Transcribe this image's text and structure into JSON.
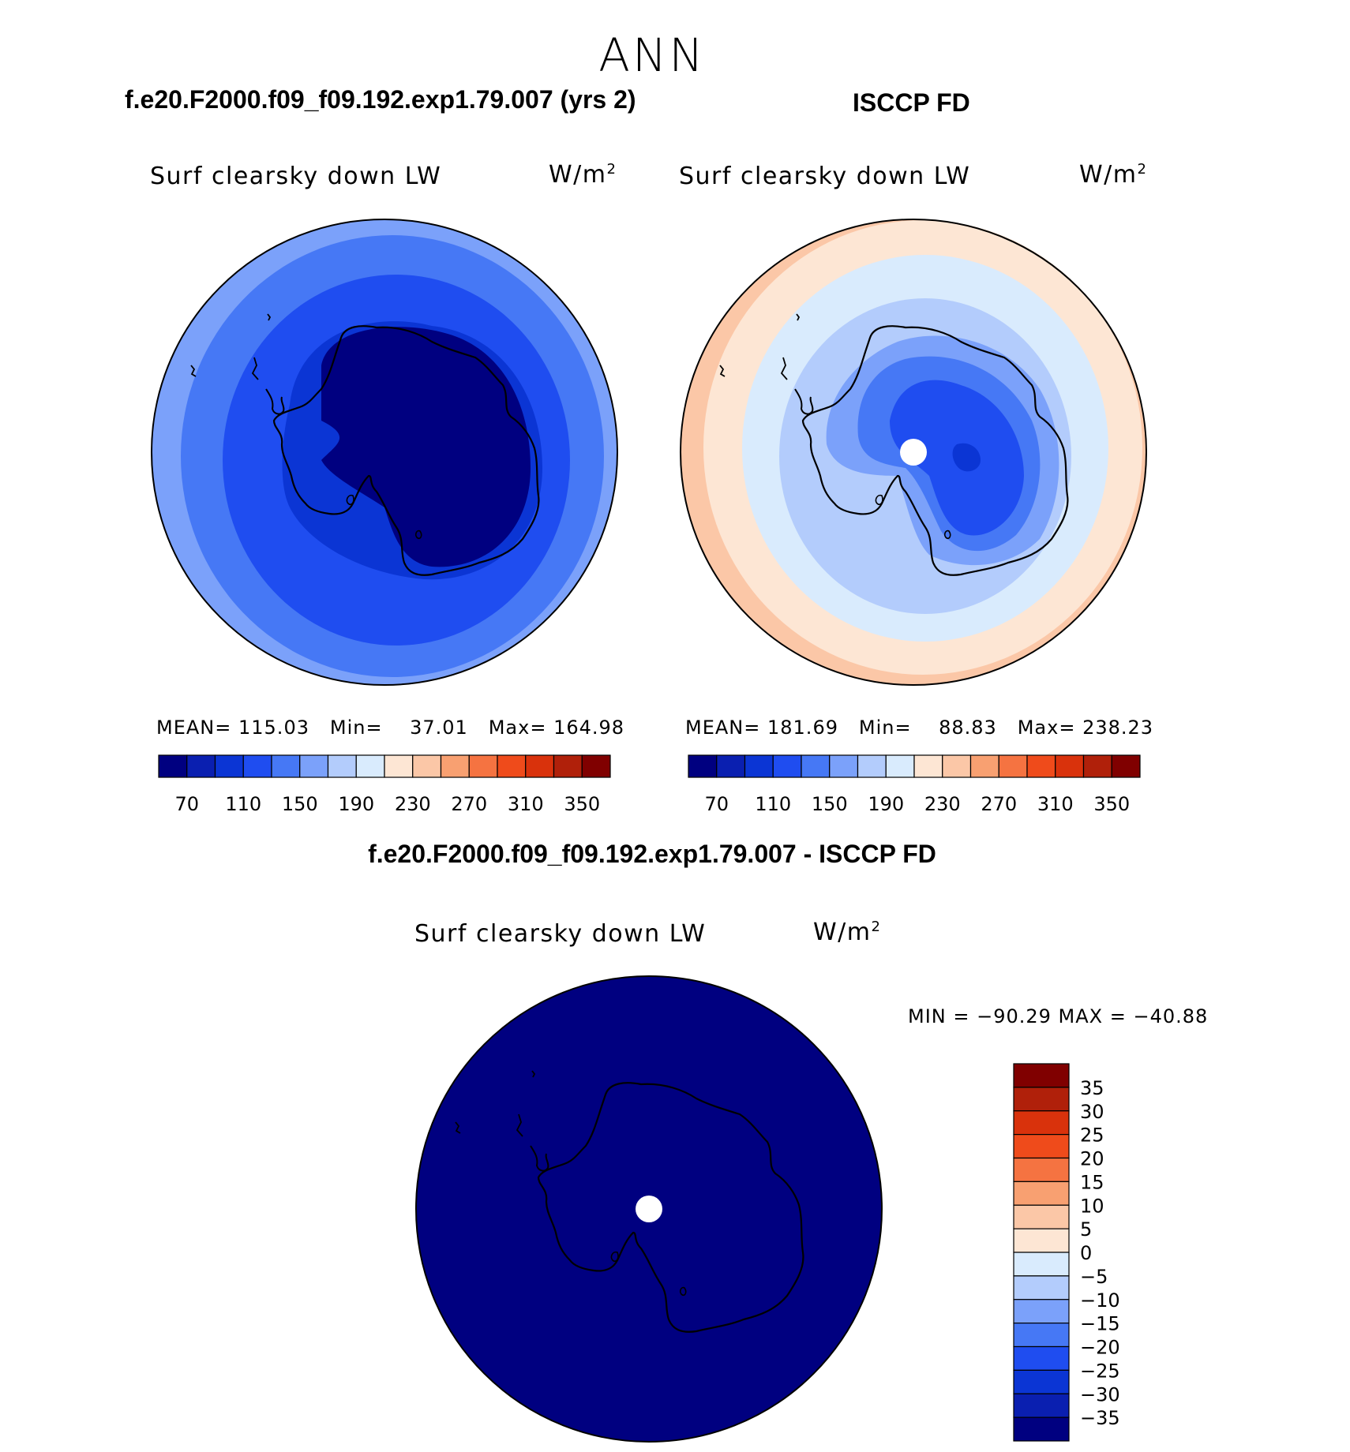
{
  "page_title": "ANN",
  "panels": [
    {
      "id": "model",
      "case_title": "f.e20.F2000.f09_f09.192.exp1.79.007 (yrs 2)",
      "variable": "Surf clearsky down LW",
      "units": "W/m",
      "units_exp": "2",
      "mean_label": "MEAN=",
      "mean": "115.03",
      "min_label": "Min=",
      "min": "37.01",
      "max_label": "Max=",
      "max": "164.98"
    },
    {
      "id": "obs",
      "case_title": "ISCCP FD",
      "variable": "Surf clearsky down LW",
      "units": "W/m",
      "units_exp": "2",
      "mean_label": "MEAN=",
      "mean": "181.69",
      "min_label": "Min=",
      "min": "88.83",
      "max_label": "Max=",
      "max": "238.23"
    }
  ],
  "difference": {
    "case_title": "f.e20.F2000.f09_f09.192.exp1.79.007 - ISCCP FD",
    "variable": "Surf clearsky down LW",
    "units": "W/m",
    "units_exp": "2",
    "minmax": "MIN = −90.29 MAX = −40.88"
  },
  "colorbar_abs": {
    "colors": [
      "#000080",
      "#0a1fb0",
      "#0b35d4",
      "#1f4df0",
      "#4678f5",
      "#7ba1fa",
      "#b3ccfc",
      "#d9ebfd",
      "#fde6d4",
      "#fbc7a7",
      "#f8a071",
      "#f57341",
      "#ef4b1b",
      "#d9320c",
      "#b0200a",
      "#800000"
    ],
    "labels": [
      "70",
      "110",
      "150",
      "190",
      "230",
      "270",
      "310",
      "350"
    ]
  },
  "colorbar_diff": {
    "colors": [
      "#000080",
      "#0a1fb0",
      "#0b35d4",
      "#1f4df0",
      "#4678f5",
      "#7ba1fa",
      "#b3ccfc",
      "#d9ebfd",
      "#fde6d4",
      "#fbc7a7",
      "#f8a071",
      "#f57341",
      "#ef4b1b",
      "#d9320c",
      "#b0200a",
      "#800000"
    ],
    "labels": [
      "−35",
      "−30",
      "−25",
      "−20",
      "−15",
      "−10",
      "−5",
      "0",
      "5",
      "10",
      "15",
      "20",
      "25",
      "30",
      "35"
    ]
  }
}
